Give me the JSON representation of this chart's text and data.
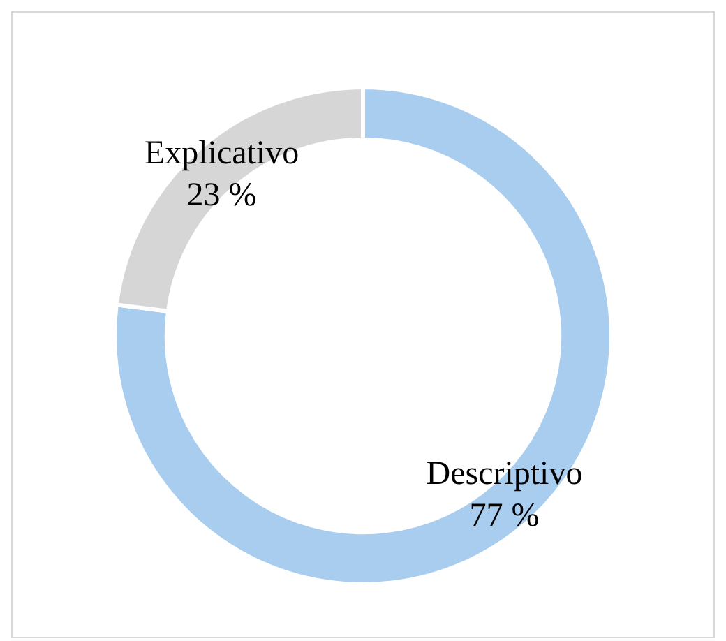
{
  "chart_data": {
    "type": "donut",
    "categories": [
      "Descriptivo",
      "Explicativo"
    ],
    "values": [
      77,
      23
    ],
    "colors": [
      "#a9cdef",
      "#d6d6d6"
    ],
    "value_labels": [
      "77 %",
      "23 %"
    ],
    "legend": false
  }
}
